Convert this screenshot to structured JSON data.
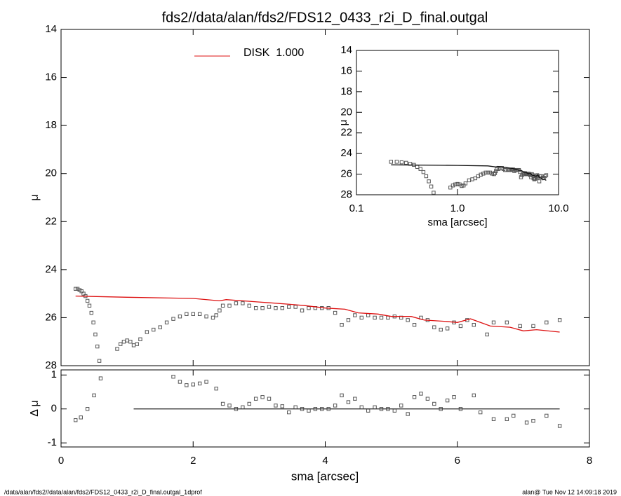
{
  "chart_data": [
    {
      "type": "scatter",
      "title": "fds2//data/alan/fds2/FDS12_0433_r2i_D_final.outgal",
      "ylabel": "μ",
      "xlim": [
        0,
        8
      ],
      "ylim": [
        28,
        14
      ],
      "yticks": [
        14,
        16,
        18,
        20,
        22,
        24,
        26,
        28
      ],
      "series": [
        {
          "type": "scatter",
          "marker": "square",
          "color": "#555555",
          "x": [
            0.22,
            0.25,
            0.28,
            0.31,
            0.34,
            0.37,
            0.4,
            0.43,
            0.46,
            0.49,
            0.52,
            0.55,
            0.58,
            0.85,
            0.9,
            0.95,
            1.0,
            1.05,
            1.1,
            1.15,
            1.2,
            1.3,
            1.4,
            1.5,
            1.6,
            1.7,
            1.8,
            1.9,
            2.0,
            2.1,
            2.2,
            2.3,
            2.35,
            2.4,
            2.45,
            2.55,
            2.65,
            2.75,
            2.85,
            2.95,
            3.05,
            3.15,
            3.25,
            3.35,
            3.45,
            3.55,
            3.65,
            3.75,
            3.85,
            3.95,
            4.05,
            4.15,
            4.25,
            4.35,
            4.45,
            4.55,
            4.65,
            4.75,
            4.85,
            4.95,
            5.05,
            5.15,
            5.25,
            5.35,
            5.45,
            5.55,
            5.65,
            5.75,
            5.85,
            5.95,
            6.05,
            6.15,
            6.25,
            6.45,
            6.55,
            6.75,
            6.95,
            7.15,
            7.35,
            7.55
          ],
          "values": [
            24.8,
            24.8,
            24.85,
            24.9,
            25.0,
            25.1,
            25.3,
            25.5,
            25.8,
            26.2,
            26.7,
            27.2,
            27.8,
            27.3,
            27.1,
            27.0,
            26.95,
            27.0,
            27.15,
            27.1,
            26.9,
            26.6,
            26.5,
            26.4,
            26.2,
            26.05,
            25.95,
            25.85,
            25.85,
            25.85,
            25.95,
            26.0,
            25.9,
            25.7,
            25.5,
            25.5,
            25.4,
            25.4,
            25.5,
            25.6,
            25.6,
            25.55,
            25.6,
            25.6,
            25.55,
            25.55,
            25.7,
            25.6,
            25.6,
            25.6,
            25.6,
            25.8,
            26.3,
            26.1,
            25.9,
            26.0,
            25.9,
            26.0,
            26.0,
            26.0,
            25.95,
            26.0,
            26.1,
            26.3,
            26.0,
            26.1,
            26.4,
            26.5,
            26.45,
            26.2,
            26.35,
            26.1,
            26.3,
            26.7,
            26.2,
            26.2,
            26.35,
            26.35,
            26.2,
            26.1
          ]
        },
        {
          "type": "line",
          "name": "DISK  1.000",
          "color": "#dd1111",
          "x": [
            0.22,
            1.0,
            2.0,
            2.4,
            2.5,
            3.0,
            3.5,
            3.7,
            4.0,
            4.3,
            4.5,
            4.8,
            5.0,
            5.3,
            5.5,
            5.8,
            6.0,
            6.2,
            6.5,
            6.8,
            7.0,
            7.2,
            7.55
          ],
          "values": [
            25.1,
            25.15,
            25.2,
            25.3,
            25.25,
            25.35,
            25.45,
            25.5,
            25.6,
            25.65,
            25.8,
            25.85,
            25.95,
            25.95,
            26.1,
            26.15,
            26.2,
            26.05,
            26.35,
            26.4,
            26.55,
            26.5,
            26.6
          ]
        }
      ]
    },
    {
      "type": "scatter",
      "ylabel": "Δ μ",
      "xlabel": "sma [arcsec]",
      "xlim": [
        0,
        8
      ],
      "xticks": [
        0,
        2,
        4,
        6,
        8
      ],
      "ylim": [
        -1.12,
        1.15
      ],
      "yticks": [
        -1,
        0,
        1
      ],
      "series": [
        {
          "type": "scatter",
          "marker": "square",
          "color": "#555555",
          "x": [
            0.22,
            0.3,
            0.4,
            0.5,
            0.6,
            1.7,
            1.8,
            1.9,
            2.0,
            2.1,
            2.2,
            2.35,
            2.45,
            2.55,
            2.65,
            2.75,
            2.85,
            2.95,
            3.05,
            3.15,
            3.25,
            3.35,
            3.45,
            3.55,
            3.65,
            3.75,
            3.85,
            3.95,
            4.05,
            4.15,
            4.25,
            4.35,
            4.45,
            4.55,
            4.65,
            4.75,
            4.85,
            4.95,
            5.05,
            5.15,
            5.25,
            5.35,
            5.45,
            5.55,
            5.65,
            5.75,
            5.85,
            5.95,
            6.05,
            6.25,
            6.35,
            6.55,
            6.75,
            6.85,
            7.05,
            7.15,
            7.35,
            7.55
          ],
          "values": [
            -0.33,
            -0.25,
            0.0,
            0.4,
            0.9,
            0.95,
            0.8,
            0.7,
            0.72,
            0.75,
            0.8,
            0.6,
            0.15,
            0.1,
            0.0,
            0.05,
            0.15,
            0.3,
            0.35,
            0.3,
            0.1,
            0.08,
            -0.1,
            0.05,
            0.0,
            -0.05,
            0.0,
            0.0,
            0.0,
            0.1,
            0.4,
            0.2,
            0.3,
            0.05,
            -0.05,
            0.05,
            0.0,
            0.0,
            -0.05,
            0.1,
            -0.15,
            0.35,
            0.45,
            0.3,
            0.15,
            0.0,
            0.25,
            0.35,
            0.0,
            0.4,
            -0.1,
            -0.3,
            -0.3,
            -0.2,
            -0.4,
            -0.35,
            -0.2,
            -0.5
          ]
        },
        {
          "type": "line",
          "color": "#333333",
          "x": [
            1.1,
            7.55
          ],
          "values": [
            0,
            0
          ]
        }
      ]
    },
    {
      "type": "scatter",
      "ylabel": "μ",
      "xlabel": "sma [arcsec]",
      "xlog": true,
      "xlim": [
        0.1,
        10
      ],
      "xticks": [
        {
          "value": 0.1,
          "label": "0.1"
        },
        {
          "value": 1,
          "label": "1.0"
        },
        {
          "value": 10,
          "label": "10.0"
        }
      ],
      "ylim": [
        28,
        14
      ],
      "yticks": [
        14,
        16,
        18,
        20,
        22,
        24,
        26,
        28
      ],
      "model_color": "#111111"
    }
  ],
  "footer": {
    "left": "/data/alan/fds2//data/alan/fds2/FDS12_0433_r2i_D_final.outgal_1dprof",
    "right": "alan@  Tue Nov 12 14:09:18 2019"
  }
}
